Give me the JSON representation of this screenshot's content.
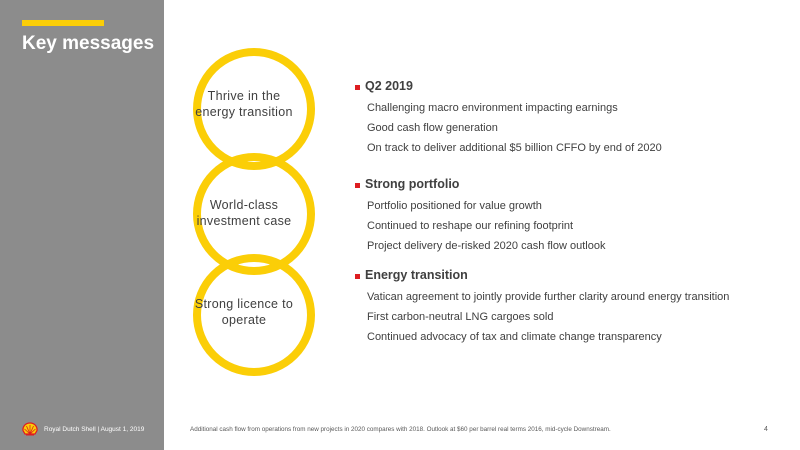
{
  "title": "Key messages",
  "colors": {
    "sidebar": "#8c8c8c",
    "accent_yellow": "#fbce07",
    "bullet_red": "#dd1d21",
    "text": "#404040"
  },
  "rings": [
    {
      "label": "Thrive in the energy transition"
    },
    {
      "label": "World-class investment case"
    },
    {
      "label": "Strong licence to operate"
    }
  ],
  "sections": [
    {
      "heading": "Q2 2019",
      "items": [
        "Challenging macro environment impacting earnings",
        "Good cash flow generation",
        "On track to deliver additional $5 billion CFFO by end of 2020"
      ]
    },
    {
      "heading": "Strong portfolio",
      "items": [
        "Portfolio positioned for value growth",
        "Continued to reshape our refining footprint",
        "Project delivery de-risked 2020 cash flow outlook"
      ]
    },
    {
      "heading": "Energy transition",
      "items": [
        "Vatican agreement to jointly provide further clarity around energy transition",
        "First carbon-neutral LNG cargoes sold",
        "Continued advocacy of tax and climate change transparency"
      ]
    }
  ],
  "footer": {
    "logo_icon": "shell-logo-icon",
    "company": "Royal Dutch Shell | August 1, 2019",
    "footnote": "Additional cash flow from operations from new projects in 2020 compares with 2018. Outlook at $60 per barrel real terms 2016, mid-cycle Downstream.",
    "page_number": "4"
  }
}
